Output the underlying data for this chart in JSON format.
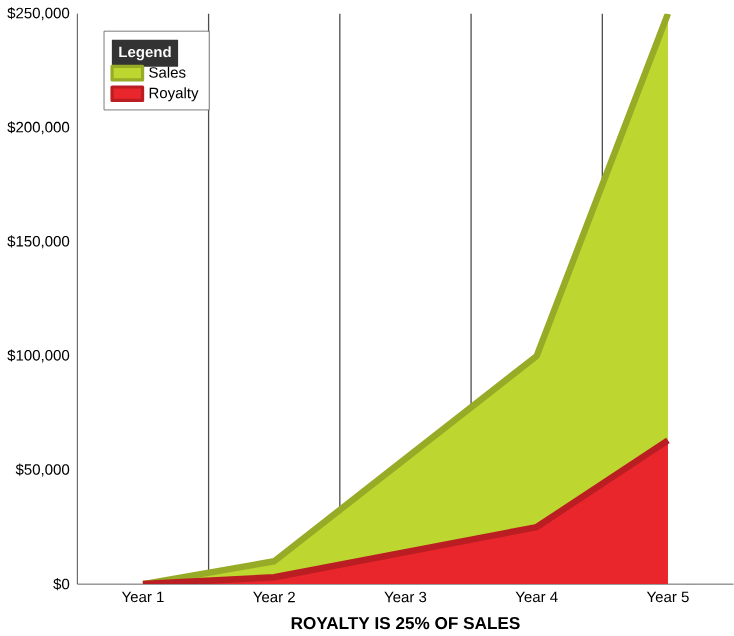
{
  "chart_data": {
    "type": "area",
    "xlabel": "ROYALTY IS 25% OF SALES",
    "legend_title": "Legend",
    "categories": [
      "Year 1",
      "Year 2",
      "Year 3",
      "Year 4",
      "Year 5"
    ],
    "series": [
      {
        "name": "Sales",
        "color": "#bdd630",
        "values": [
          0,
          10000,
          55000,
          100000,
          250000
        ]
      },
      {
        "name": "Royalty",
        "color": "#e8262b",
        "values": [
          0,
          3000,
          14000,
          25000,
          63000
        ]
      }
    ],
    "ylim": [
      0,
      250000
    ],
    "yticks": [
      {
        "value": 0,
        "label": "$0"
      },
      {
        "value": 50000,
        "label": "$50,000"
      },
      {
        "value": 100000,
        "label": "$100,000"
      },
      {
        "value": 150000,
        "label": "$150,000"
      },
      {
        "value": 200000,
        "label": "$200,000"
      },
      {
        "value": 250000,
        "label": "$250,000"
      }
    ],
    "grid": "x",
    "legend": "top left"
  }
}
